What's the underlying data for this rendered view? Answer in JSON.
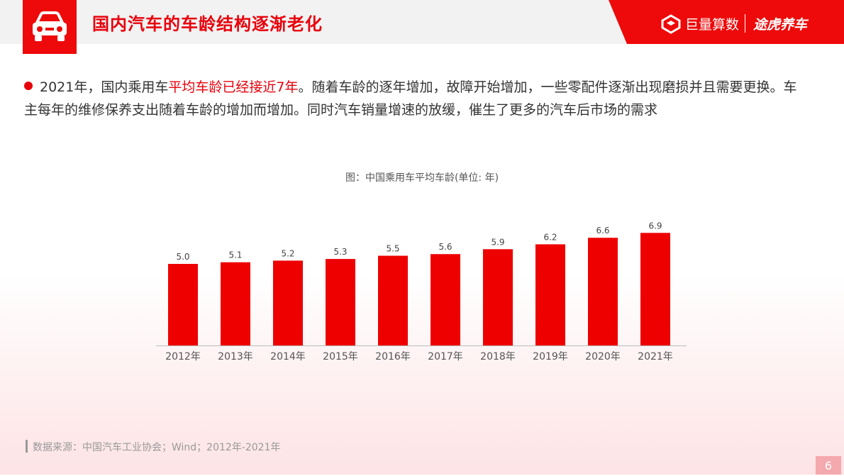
{
  "header": {
    "title": "国内汽车的车龄结构逐渐老化",
    "brand_primary": "巨量算数",
    "brand_secondary": "途虎养车",
    "icon": "car-icon",
    "accent_color": "#ee0a0a"
  },
  "summary": {
    "text_part1": "2021年，国内乘用车",
    "text_highlight": "平均车龄已经接近7年",
    "text_part2": "。随着车龄的逐年增加，故障开始增加，一些零配件逐渐出现磨损并且需要更换。车主每年的维修保养支出随着车龄的增加而增加。同时汽车销量增速的放缓，催生了更多的汽车后市场的需求"
  },
  "chart_data": {
    "type": "bar",
    "title": "图：中国乘用车平均车龄(单位: 年)",
    "categories": [
      "2012年",
      "2013年",
      "2014年",
      "2015年",
      "2016年",
      "2017年",
      "2018年",
      "2019年",
      "2020年",
      "2021年"
    ],
    "values": [
      5.0,
      5.1,
      5.2,
      5.3,
      5.5,
      5.6,
      5.9,
      6.2,
      6.6,
      6.9
    ],
    "data_labels": [
      "5.0",
      "5.1",
      "5.2",
      "5.3",
      "5.5",
      "5.6",
      "5.9",
      "6.2",
      "6.6",
      "6.9"
    ],
    "bar_color": "#ee0000",
    "grid": false
  },
  "footer": {
    "source": "数据来源：中国汽车工业协会；Wind；2012年-2021年",
    "page_number": "6"
  }
}
